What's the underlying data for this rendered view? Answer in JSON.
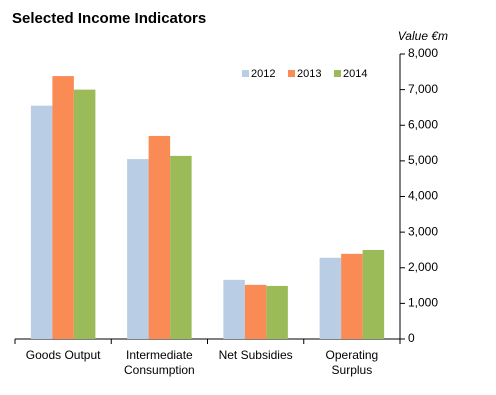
{
  "chart_data": {
    "type": "bar",
    "title": "Selected Income Indicators",
    "y_axis_label": "Value €m",
    "categories": [
      "Goods Output",
      "Intermediate\nConsumption",
      "Net Subsidies",
      "Operating\nSurplus"
    ],
    "series": [
      {
        "name": "2012",
        "color": "#b9cde5",
        "values": [
          6550,
          5050,
          1660,
          2280
        ]
      },
      {
        "name": "2013",
        "color": "#fb8b55",
        "values": [
          7380,
          5700,
          1520,
          2390
        ]
      },
      {
        "name": "2014",
        "color": "#9bbb59",
        "values": [
          7000,
          5140,
          1490,
          2500
        ]
      }
    ],
    "ylim": [
      0,
      8000
    ],
    "yticks": [
      0,
      {
        "value": 1000,
        "label": "1,000"
      },
      {
        "value": 2000,
        "label": "2,000"
      },
      {
        "value": 3000,
        "label": "3,000"
      },
      {
        "value": 4000,
        "label": "4,000"
      },
      {
        "value": 5000,
        "label": "5,000"
      },
      {
        "value": 6000,
        "label": "6,000"
      },
      {
        "value": 7000,
        "label": "7,000"
      },
      {
        "value": 8000,
        "label": "8,000"
      }
    ],
    "y_axis_side": "right",
    "grid": false,
    "legend": "top"
  }
}
